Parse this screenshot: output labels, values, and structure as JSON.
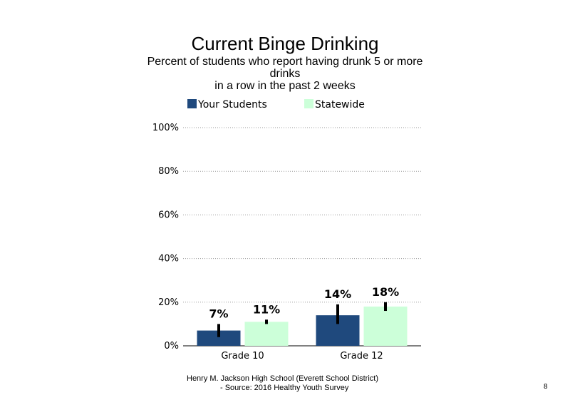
{
  "chart_data": {
    "type": "bar",
    "title": "Current Binge Drinking",
    "subtitle_lines": [
      "Percent of students  who report having drunk 5 or more",
      "drinks",
      "in a row in the past 2 weeks"
    ],
    "categories": [
      "Grade 10",
      "Grade 12"
    ],
    "series": [
      {
        "name": "Your Students",
        "values": [
          7,
          14
        ],
        "labels": [
          "7%",
          "14%"
        ],
        "error": [
          [
            4,
            10
          ],
          [
            10,
            19
          ]
        ],
        "color": "#1F497D"
      },
      {
        "name": "Statewide",
        "values": [
          11,
          18
        ],
        "labels": [
          "11%",
          "18%"
        ],
        "error": [
          [
            10,
            12
          ],
          [
            16,
            20
          ]
        ],
        "color": "#CCFFD9"
      }
    ],
    "y_ticks": [
      "0%",
      "20%",
      "40%",
      "60%",
      "80%",
      "100%"
    ],
    "ylim": [
      0,
      100
    ],
    "grid": "dotted horizontal",
    "legend_position": "top"
  },
  "footer": {
    "line1": "Henry M.  Jackson High  School (Everett School District)",
    "line2": "- Source: 2016 Healthy  Youth Survey"
  },
  "page_number": "8"
}
